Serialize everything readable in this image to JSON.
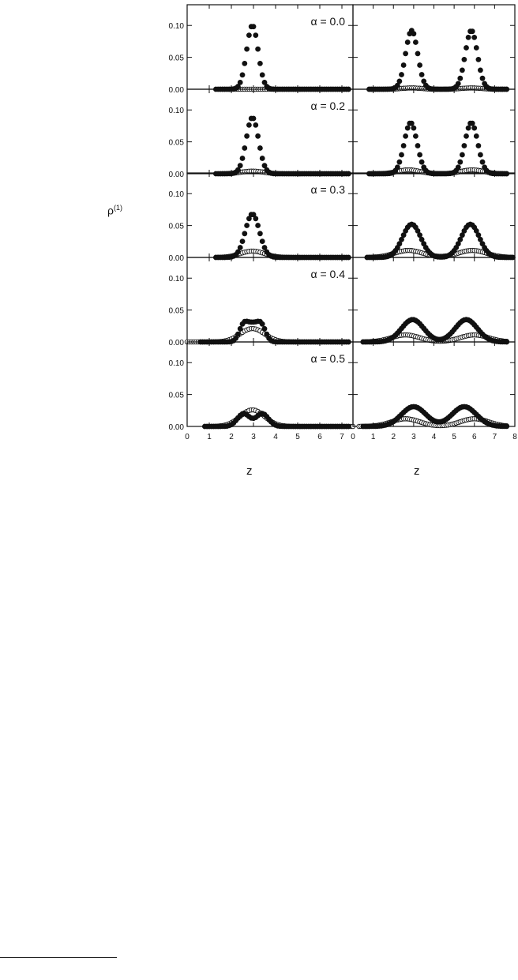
{
  "figure": {
    "ylabel": "ρ",
    "ylabel_sup": "(1)",
    "xlabel_left": "z",
    "xlabel_right": "z"
  },
  "chart_data": {
    "type": "scatter",
    "title": "",
    "rows": [
      {
        "alpha_label": "α = 0.0",
        "alpha": 0.0
      },
      {
        "alpha_label": "α = 0.2",
        "alpha": 0.2
      },
      {
        "alpha_label": "α = 0.3",
        "alpha": 0.3
      },
      {
        "alpha_label": "α = 0.4",
        "alpha": 0.4
      },
      {
        "alpha_label": "α = 0.5",
        "alpha": 0.5
      }
    ],
    "ylim": [
      0,
      0.13
    ],
    "yticks": [
      0.0,
      0.05,
      0.1
    ],
    "ytick_labels": [
      "0.00",
      "0.05",
      "0.10"
    ],
    "columns": [
      {
        "xlim": [
          0,
          7.5
        ],
        "xticks": [
          0,
          1,
          2,
          3,
          4,
          5,
          6,
          7
        ],
        "xtick_labels": [
          "0",
          "1",
          "2",
          "3",
          "4",
          "5",
          "6",
          "7"
        ]
      },
      {
        "xlim": [
          0,
          8
        ],
        "xticks": [
          0,
          1,
          2,
          3,
          4,
          5,
          6,
          7,
          8
        ],
        "xtick_labels": [
          "0",
          "1",
          "2",
          "3",
          "4",
          "5",
          "6",
          "7",
          "8"
        ]
      }
    ],
    "series_styles": {
      "filled": "#111111",
      "open": "#ffffff"
    },
    "panels": [
      {
        "row": 0,
        "col": 0,
        "filled": {
          "peaks": [
            {
              "c": 2.95,
              "h": 0.1,
              "s": 0.26
            }
          ],
          "range": [
            1.3,
            7.3
          ]
        },
        "open": {
          "peaks": [
            {
              "c": 2.95,
              "h": 0.0,
              "s": 0.5
            }
          ],
          "range": [
            1.5,
            7.3
          ]
        }
      },
      {
        "row": 0,
        "col": 1,
        "filled": {
          "peaks": [
            {
              "c": 2.9,
              "h": 0.092,
              "s": 0.3
            },
            {
              "c": 5.85,
              "h": 0.092,
              "s": 0.3
            }
          ],
          "range": [
            0.8,
            7.6
          ]
        },
        "open": {
          "peaks": [
            {
              "c": 2.9,
              "h": 0.002,
              "s": 0.5
            },
            {
              "c": 5.85,
              "h": 0.002,
              "s": 0.5
            }
          ],
          "range": [
            0.8,
            7.6
          ]
        }
      },
      {
        "row": 1,
        "col": 0,
        "filled": {
          "peaks": [
            {
              "c": 2.95,
              "h": 0.088,
              "s": 0.28
            }
          ],
          "range": [
            1.3,
            7.3
          ]
        },
        "open": {
          "peaks": [
            {
              "c": 2.95,
              "h": 0.004,
              "s": 0.5
            }
          ],
          "range": [
            1.5,
            7.3
          ]
        }
      },
      {
        "row": 1,
        "col": 1,
        "filled": {
          "peaks": [
            {
              "c": 2.85,
              "h": 0.08,
              "s": 0.32
            },
            {
              "c": 5.85,
              "h": 0.08,
              "s": 0.32
            }
          ],
          "range": [
            0.8,
            7.6
          ]
        },
        "open": {
          "peaks": [
            {
              "c": 2.75,
              "h": 0.006,
              "s": 0.55
            },
            {
              "c": 5.9,
              "h": 0.006,
              "s": 0.55
            }
          ],
          "range": [
            0.8,
            7.6
          ]
        }
      },
      {
        "row": 2,
        "col": 0,
        "filled": {
          "peaks": [
            {
              "c": 2.95,
              "h": 0.068,
              "s": 0.32
            }
          ],
          "range": [
            1.3,
            7.3
          ]
        },
        "open": {
          "peaks": [
            {
              "c": 2.95,
              "h": 0.01,
              "s": 0.55
            }
          ],
          "range": [
            1.3,
            7.3
          ]
        }
      },
      {
        "row": 2,
        "col": 1,
        "filled": {
          "peaks": [
            {
              "c": 2.9,
              "h": 0.052,
              "s": 0.45
            },
            {
              "c": 5.8,
              "h": 0.052,
              "s": 0.45
            }
          ],
          "range": [
            0.7,
            7.9
          ]
        },
        "open": {
          "peaks": [
            {
              "c": 2.75,
              "h": 0.011,
              "s": 0.7
            },
            {
              "c": 5.9,
              "h": 0.011,
              "s": 0.7
            }
          ],
          "range": [
            0.7,
            7.9
          ]
        }
      },
      {
        "row": 3,
        "col": 0,
        "filled": {
          "peaks": [
            {
              "c": 2.55,
              "h": 0.026,
              "s": 0.2
            },
            {
              "c": 2.95,
              "h": 0.024,
              "s": 0.22
            },
            {
              "c": 3.35,
              "h": 0.026,
              "s": 0.2
            }
          ],
          "range": [
            0.6,
            7.3
          ]
        },
        "open": {
          "peaks": [
            {
              "c": 2.95,
              "h": 0.021,
              "s": 0.55
            }
          ],
          "range": [
            0.0,
            7.3
          ]
        }
      },
      {
        "row": 3,
        "col": 1,
        "filled": {
          "peaks": [
            {
              "c": 2.95,
              "h": 0.035,
              "s": 0.55
            },
            {
              "c": 5.6,
              "h": 0.035,
              "s": 0.55
            }
          ],
          "range": [
            0.5,
            7.6
          ]
        },
        "open": {
          "peaks": [
            {
              "c": 2.6,
              "h": 0.011,
              "s": 0.7
            },
            {
              "c": 6.0,
              "h": 0.011,
              "s": 0.7
            }
          ],
          "range": [
            0.5,
            7.6
          ]
        }
      },
      {
        "row": 4,
        "col": 0,
        "filled": {
          "peaks": [
            {
              "c": 2.55,
              "h": 0.02,
              "s": 0.28
            },
            {
              "c": 3.4,
              "h": 0.02,
              "s": 0.28
            }
          ],
          "range": [
            0.8,
            7.3
          ]
        },
        "open": {
          "peaks": [
            {
              "c": 2.95,
              "h": 0.026,
              "s": 0.55
            }
          ],
          "range": [
            0.8,
            7.5
          ]
        }
      },
      {
        "row": 4,
        "col": 1,
        "filled": {
          "peaks": [
            {
              "c": 3.0,
              "h": 0.031,
              "s": 0.6
            },
            {
              "c": 5.5,
              "h": 0.031,
              "s": 0.6
            }
          ],
          "range": [
            0.5,
            7.6
          ]
        },
        "open": {
          "peaks": [
            {
              "c": 2.6,
              "h": 0.012,
              "s": 0.7
            },
            {
              "c": 6.0,
              "h": 0.012,
              "s": 0.7
            }
          ],
          "range": [
            0.3,
            7.6
          ]
        }
      }
    ]
  }
}
